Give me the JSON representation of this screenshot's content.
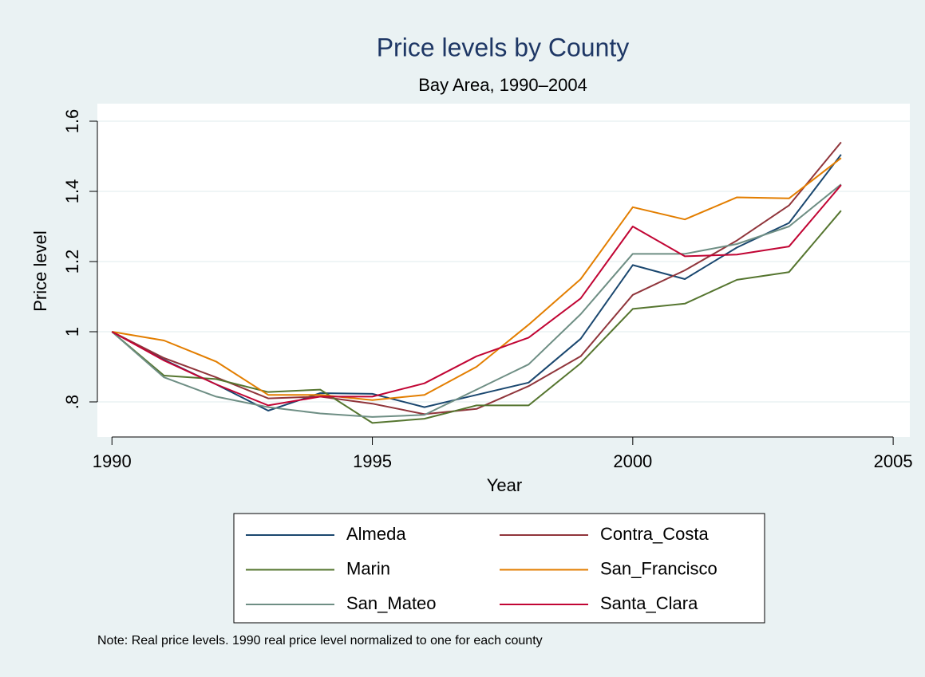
{
  "chart_data": {
    "type": "line",
    "title": "Price levels by County",
    "subtitle": "Bay Area, 1990–2004",
    "x_label": "Year",
    "y_label": "Price level",
    "note": "Note: Real price levels. 1990 real price level normalized to one for each county",
    "x": [
      1990,
      1991,
      1992,
      1993,
      1994,
      1995,
      1996,
      1997,
      1998,
      1999,
      2000,
      2001,
      2002,
      2003,
      2004
    ],
    "series": [
      {
        "name": "Almeda",
        "color": "#1a476f",
        "values": [
          1.0,
          0.92,
          0.85,
          0.775,
          0.825,
          0.823,
          0.785,
          0.82,
          0.855,
          0.98,
          1.19,
          1.15,
          1.24,
          1.31,
          1.505
        ]
      },
      {
        "name": "Contra_Costa",
        "color": "#90353b",
        "values": [
          1.0,
          0.925,
          0.87,
          0.81,
          0.815,
          0.795,
          0.765,
          0.78,
          0.845,
          0.93,
          1.105,
          1.175,
          1.26,
          1.36,
          1.54
        ]
      },
      {
        "name": "Marin",
        "color": "#55752f",
        "values": [
          1.0,
          0.875,
          0.865,
          0.828,
          0.835,
          0.74,
          0.752,
          0.79,
          0.79,
          0.91,
          1.065,
          1.08,
          1.148,
          1.17,
          1.345
        ]
      },
      {
        "name": "San_Francisco",
        "color": "#e37e00",
        "values": [
          1.0,
          0.975,
          0.915,
          0.82,
          0.82,
          0.805,
          0.82,
          0.9,
          1.02,
          1.15,
          1.355,
          1.32,
          1.383,
          1.38,
          1.495
        ]
      },
      {
        "name": "San_Mateo",
        "color": "#6e8e84",
        "values": [
          1.0,
          0.87,
          0.815,
          0.785,
          0.767,
          0.757,
          0.763,
          0.835,
          0.907,
          1.05,
          1.222,
          1.222,
          1.25,
          1.3,
          1.42
        ]
      },
      {
        "name": "Santa_Clara",
        "color": "#c10534",
        "values": [
          1.0,
          0.918,
          0.85,
          0.79,
          0.815,
          0.815,
          0.853,
          0.93,
          0.983,
          1.095,
          1.3,
          1.215,
          1.22,
          1.243,
          1.418
        ]
      }
    ],
    "xlim": [
      1989.72,
      2005.32
    ],
    "xticks": [
      1990,
      1995,
      2000,
      2005
    ],
    "ylim": [
      0.7,
      1.65
    ],
    "yticks": [
      {
        "value": 0.8,
        "label": ".8"
      },
      1,
      1.2,
      1.4,
      1.6
    ],
    "grid": true,
    "legend": "bottom"
  }
}
